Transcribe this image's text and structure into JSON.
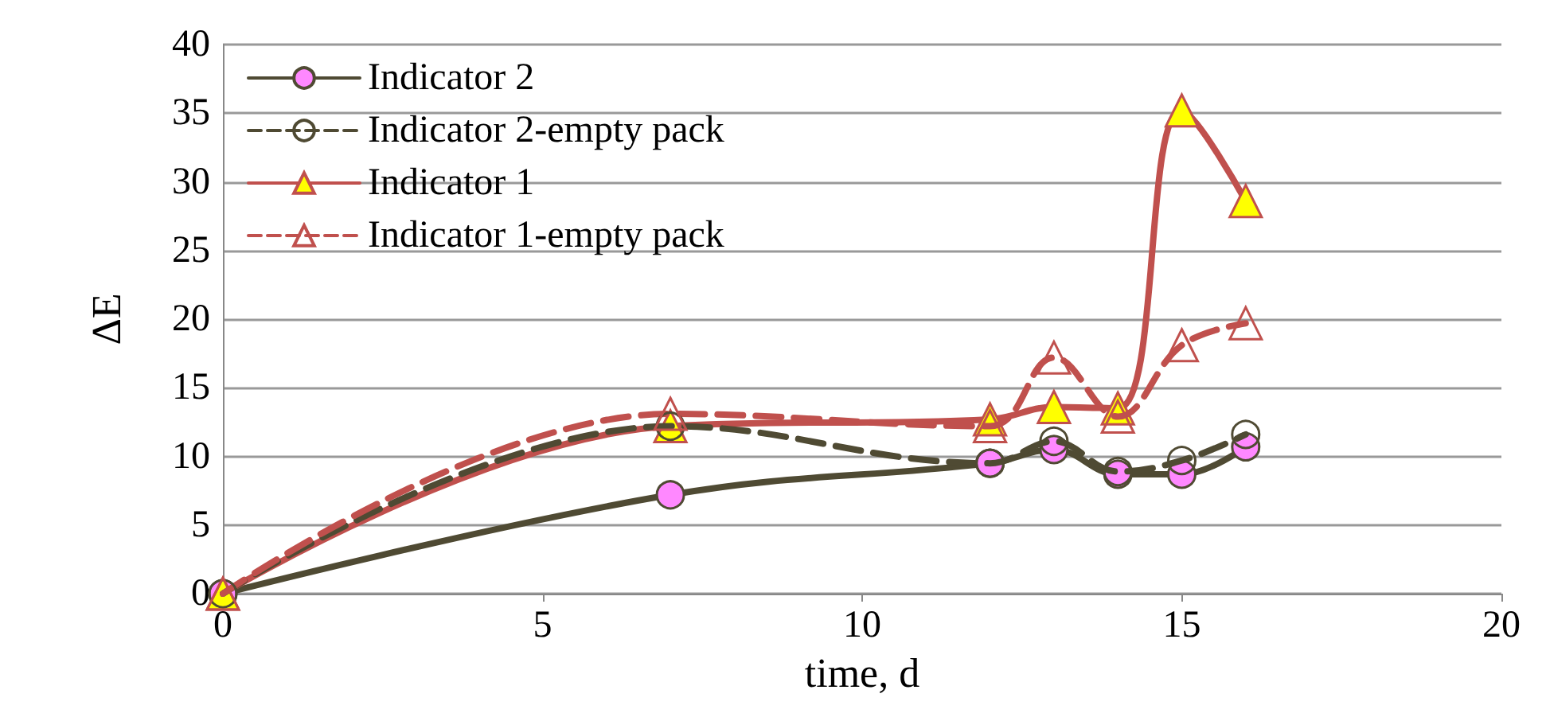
{
  "chart_data": {
    "type": "line",
    "xlabel": "time, d",
    "ylabel": "ΔE",
    "xlim": [
      0,
      20
    ],
    "xticks": [
      0,
      5,
      10,
      15,
      20
    ],
    "ylim": [
      0,
      40
    ],
    "yticks": [
      0,
      5,
      10,
      15,
      20,
      25,
      30,
      35,
      40
    ],
    "grid": "y",
    "legend": "top left",
    "series": [
      {
        "name": "Indicator 2",
        "color": "#4f4a33",
        "marker": "circle",
        "line_style": "solid",
        "x": [
          0,
          7,
          12,
          13,
          14,
          15,
          16
        ],
        "values": [
          0,
          7.2,
          9.5,
          10.5,
          8.7,
          8.7,
          10.7
        ]
      },
      {
        "name": "Indicator 2-empty pack",
        "color": "#4f4a33",
        "marker": "circle",
        "line_style": "dashed",
        "x": [
          0,
          7,
          12,
          13,
          14,
          15,
          16
        ],
        "values": [
          0,
          12.2,
          9.5,
          11.1,
          8.9,
          9.7,
          11.6
        ]
      },
      {
        "name": "Indicator 1",
        "color": "#c0504d",
        "marker": "triangle",
        "line_style": "solid",
        "x": [
          0,
          7,
          12,
          13,
          14,
          15,
          16
        ],
        "values": [
          0,
          12.2,
          12.7,
          13.6,
          13.5,
          35.2,
          28.6
        ]
      },
      {
        "name": "Indicator 1-empty pack",
        "color": "#c0504d",
        "marker": "triangle",
        "line_style": "dashed",
        "x": [
          0,
          7,
          12,
          13,
          14,
          15,
          16
        ],
        "values": [
          0,
          13.1,
          12.2,
          17.2,
          12.9,
          18.1,
          19.7
        ]
      }
    ]
  }
}
